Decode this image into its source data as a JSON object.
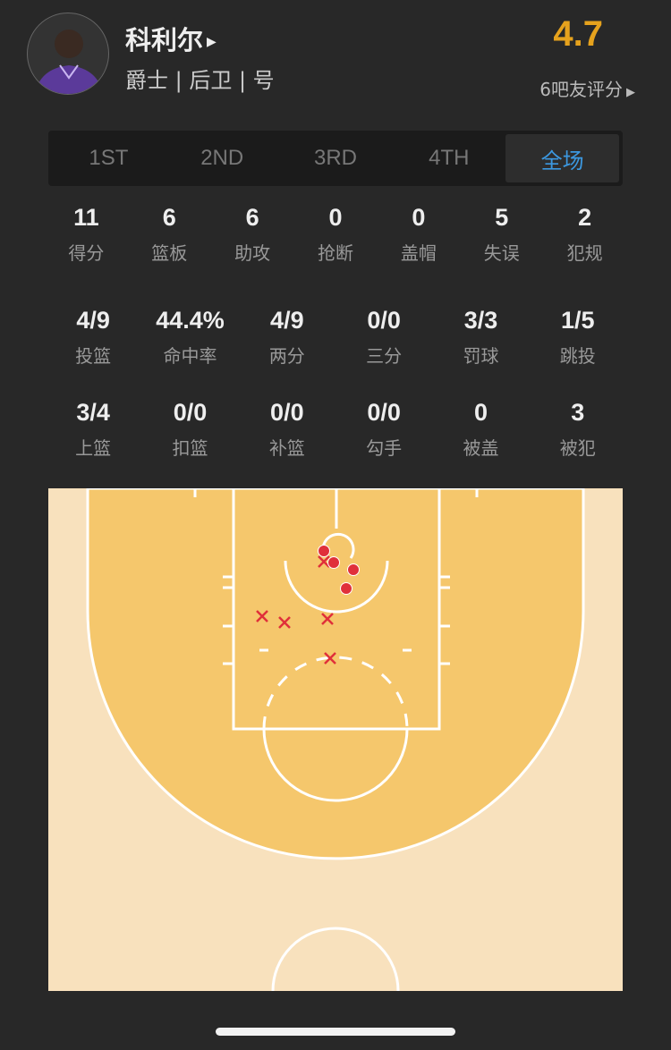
{
  "player": {
    "name": "科利尔",
    "info": "爵士 | 后卫 | 号",
    "rating": "4.7",
    "rating_count": "6吧友评分"
  },
  "tabs": [
    {
      "label": "1ST"
    },
    {
      "label": "2ND"
    },
    {
      "label": "3RD"
    },
    {
      "label": "4TH"
    },
    {
      "label": "全场",
      "active": true
    }
  ],
  "stats_main": [
    {
      "v": "11",
      "l": "得分"
    },
    {
      "v": "6",
      "l": "篮板"
    },
    {
      "v": "6",
      "l": "助攻"
    },
    {
      "v": "0",
      "l": "抢断"
    },
    {
      "v": "0",
      "l": "盖帽"
    },
    {
      "v": "5",
      "l": "失误"
    },
    {
      "v": "2",
      "l": "犯规"
    }
  ],
  "stats_shoot": [
    {
      "v": "4/9",
      "l": "投篮"
    },
    {
      "v": "44.4%",
      "l": "命中率"
    },
    {
      "v": "4/9",
      "l": "两分"
    },
    {
      "v": "0/0",
      "l": "三分"
    },
    {
      "v": "3/3",
      "l": "罚球"
    },
    {
      "v": "1/5",
      "l": "跳投"
    }
  ],
  "stats_detail": [
    {
      "v": "3/4",
      "l": "上篮"
    },
    {
      "v": "0/0",
      "l": "扣篮"
    },
    {
      "v": "0/0",
      "l": "补篮"
    },
    {
      "v": "0/0",
      "l": "勾手"
    },
    {
      "v": "0",
      "l": "被盖"
    },
    {
      "v": "3",
      "l": "被犯"
    }
  ],
  "colors": {
    "accent": "#3c98e0",
    "rating": "#e6a21d",
    "shot": "#e0303a",
    "court_inner": "#f5c76c",
    "court_outer": "#f8e1bd"
  },
  "shots": {
    "made": 4,
    "missed": 5
  }
}
